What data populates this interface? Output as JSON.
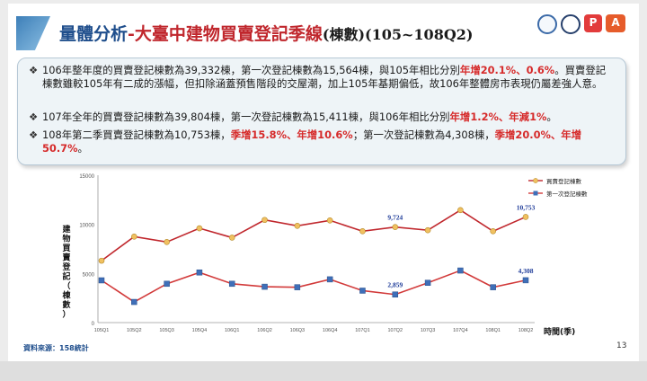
{
  "header": {
    "title_main": "量體分析",
    "title_sub": "-大臺中建物買賣登記季線",
    "title_tail": "(棟數)(105~108Q2)"
  },
  "bullets": [
    {
      "segments": [
        {
          "text": "106年整年度的買賣登記棟數為39,332棟，第一次登記棟數為15,564棟，與105年相比分別",
          "red": false
        },
        {
          "text": "年增20.1%、0.6%",
          "red": true
        },
        {
          "text": "。買賣登記棟數雖較105年有二成的漲幅，但扣除涵蓋預售階段的交屋潮，加上105年基期偏低，故106年整體房市表現仍屬差強人意。",
          "red": false
        }
      ]
    },
    {
      "segments": [
        {
          "text": "107年全年的買賣登記棟數為39,804棟，第一次登記棟數為15,411棟，與106年相比分別",
          "red": false
        },
        {
          "text": "年增1.2%、年減1%",
          "red": true
        },
        {
          "text": "。",
          "red": false
        }
      ]
    },
    {
      "segments": [
        {
          "text": "108年第二季買賣登記棟數為10,753棟，",
          "red": false
        },
        {
          "text": "季增15.8%、年增10.6%",
          "red": true
        },
        {
          "text": "；第一次登記棟數為4,308棟，",
          "red": false
        },
        {
          "text": "季增20.0%、年增50.7%",
          "red": true
        },
        {
          "text": "。",
          "red": false
        }
      ]
    }
  ],
  "bullet_mark": "❖",
  "logos": [
    {
      "name": "logo-a",
      "letter": ""
    },
    {
      "name": "logo-b",
      "letter": ""
    },
    {
      "name": "logo-c",
      "letter": "P"
    },
    {
      "name": "logo-d",
      "letter": "A"
    }
  ],
  "footer": {
    "source": "資料來源：158統計",
    "page": "13"
  },
  "colors": {
    "series1": "#c0272d",
    "series1_marker": "#f0c060",
    "series2": "#d23a3a",
    "series2_marker": "#3f6fb8",
    "label": "#1f3c99"
  },
  "chart_data": {
    "type": "line",
    "categories": [
      "105Q1",
      "105Q2",
      "105Q3",
      "105Q4",
      "106Q1",
      "106Q2",
      "106Q3",
      "106Q4",
      "107Q1",
      "107Q2",
      "107Q3",
      "107Q4",
      "108Q1",
      "108Q2"
    ],
    "series": [
      {
        "name": "買賣登記棟數",
        "values": [
          6300,
          8750,
          8200,
          9600,
          8650,
          10450,
          9850,
          10400,
          9300,
          9724,
          9400,
          11450,
          9300,
          10753
        ]
      },
      {
        "name": "第一次登記棟數",
        "values": [
          4300,
          2100,
          3950,
          5100,
          3950,
          3650,
          3600,
          4400,
          3250,
          2859,
          4050,
          5300,
          3600,
          4308
        ]
      }
    ],
    "data_labels": [
      {
        "series": 0,
        "index": 9,
        "text": "9,724"
      },
      {
        "series": 0,
        "index": 13,
        "text": "10,753"
      },
      {
        "series": 1,
        "index": 9,
        "text": "2,859"
      },
      {
        "series": 1,
        "index": 13,
        "text": "4,308"
      }
    ],
    "ylabel": "建物買賣登記（棟數）",
    "xlabel": "時間(季)",
    "ylim": [
      0,
      15000
    ],
    "yticks": [
      "0",
      "5000",
      "10000",
      "15000"
    ],
    "grid": false,
    "legend": "top-right"
  }
}
